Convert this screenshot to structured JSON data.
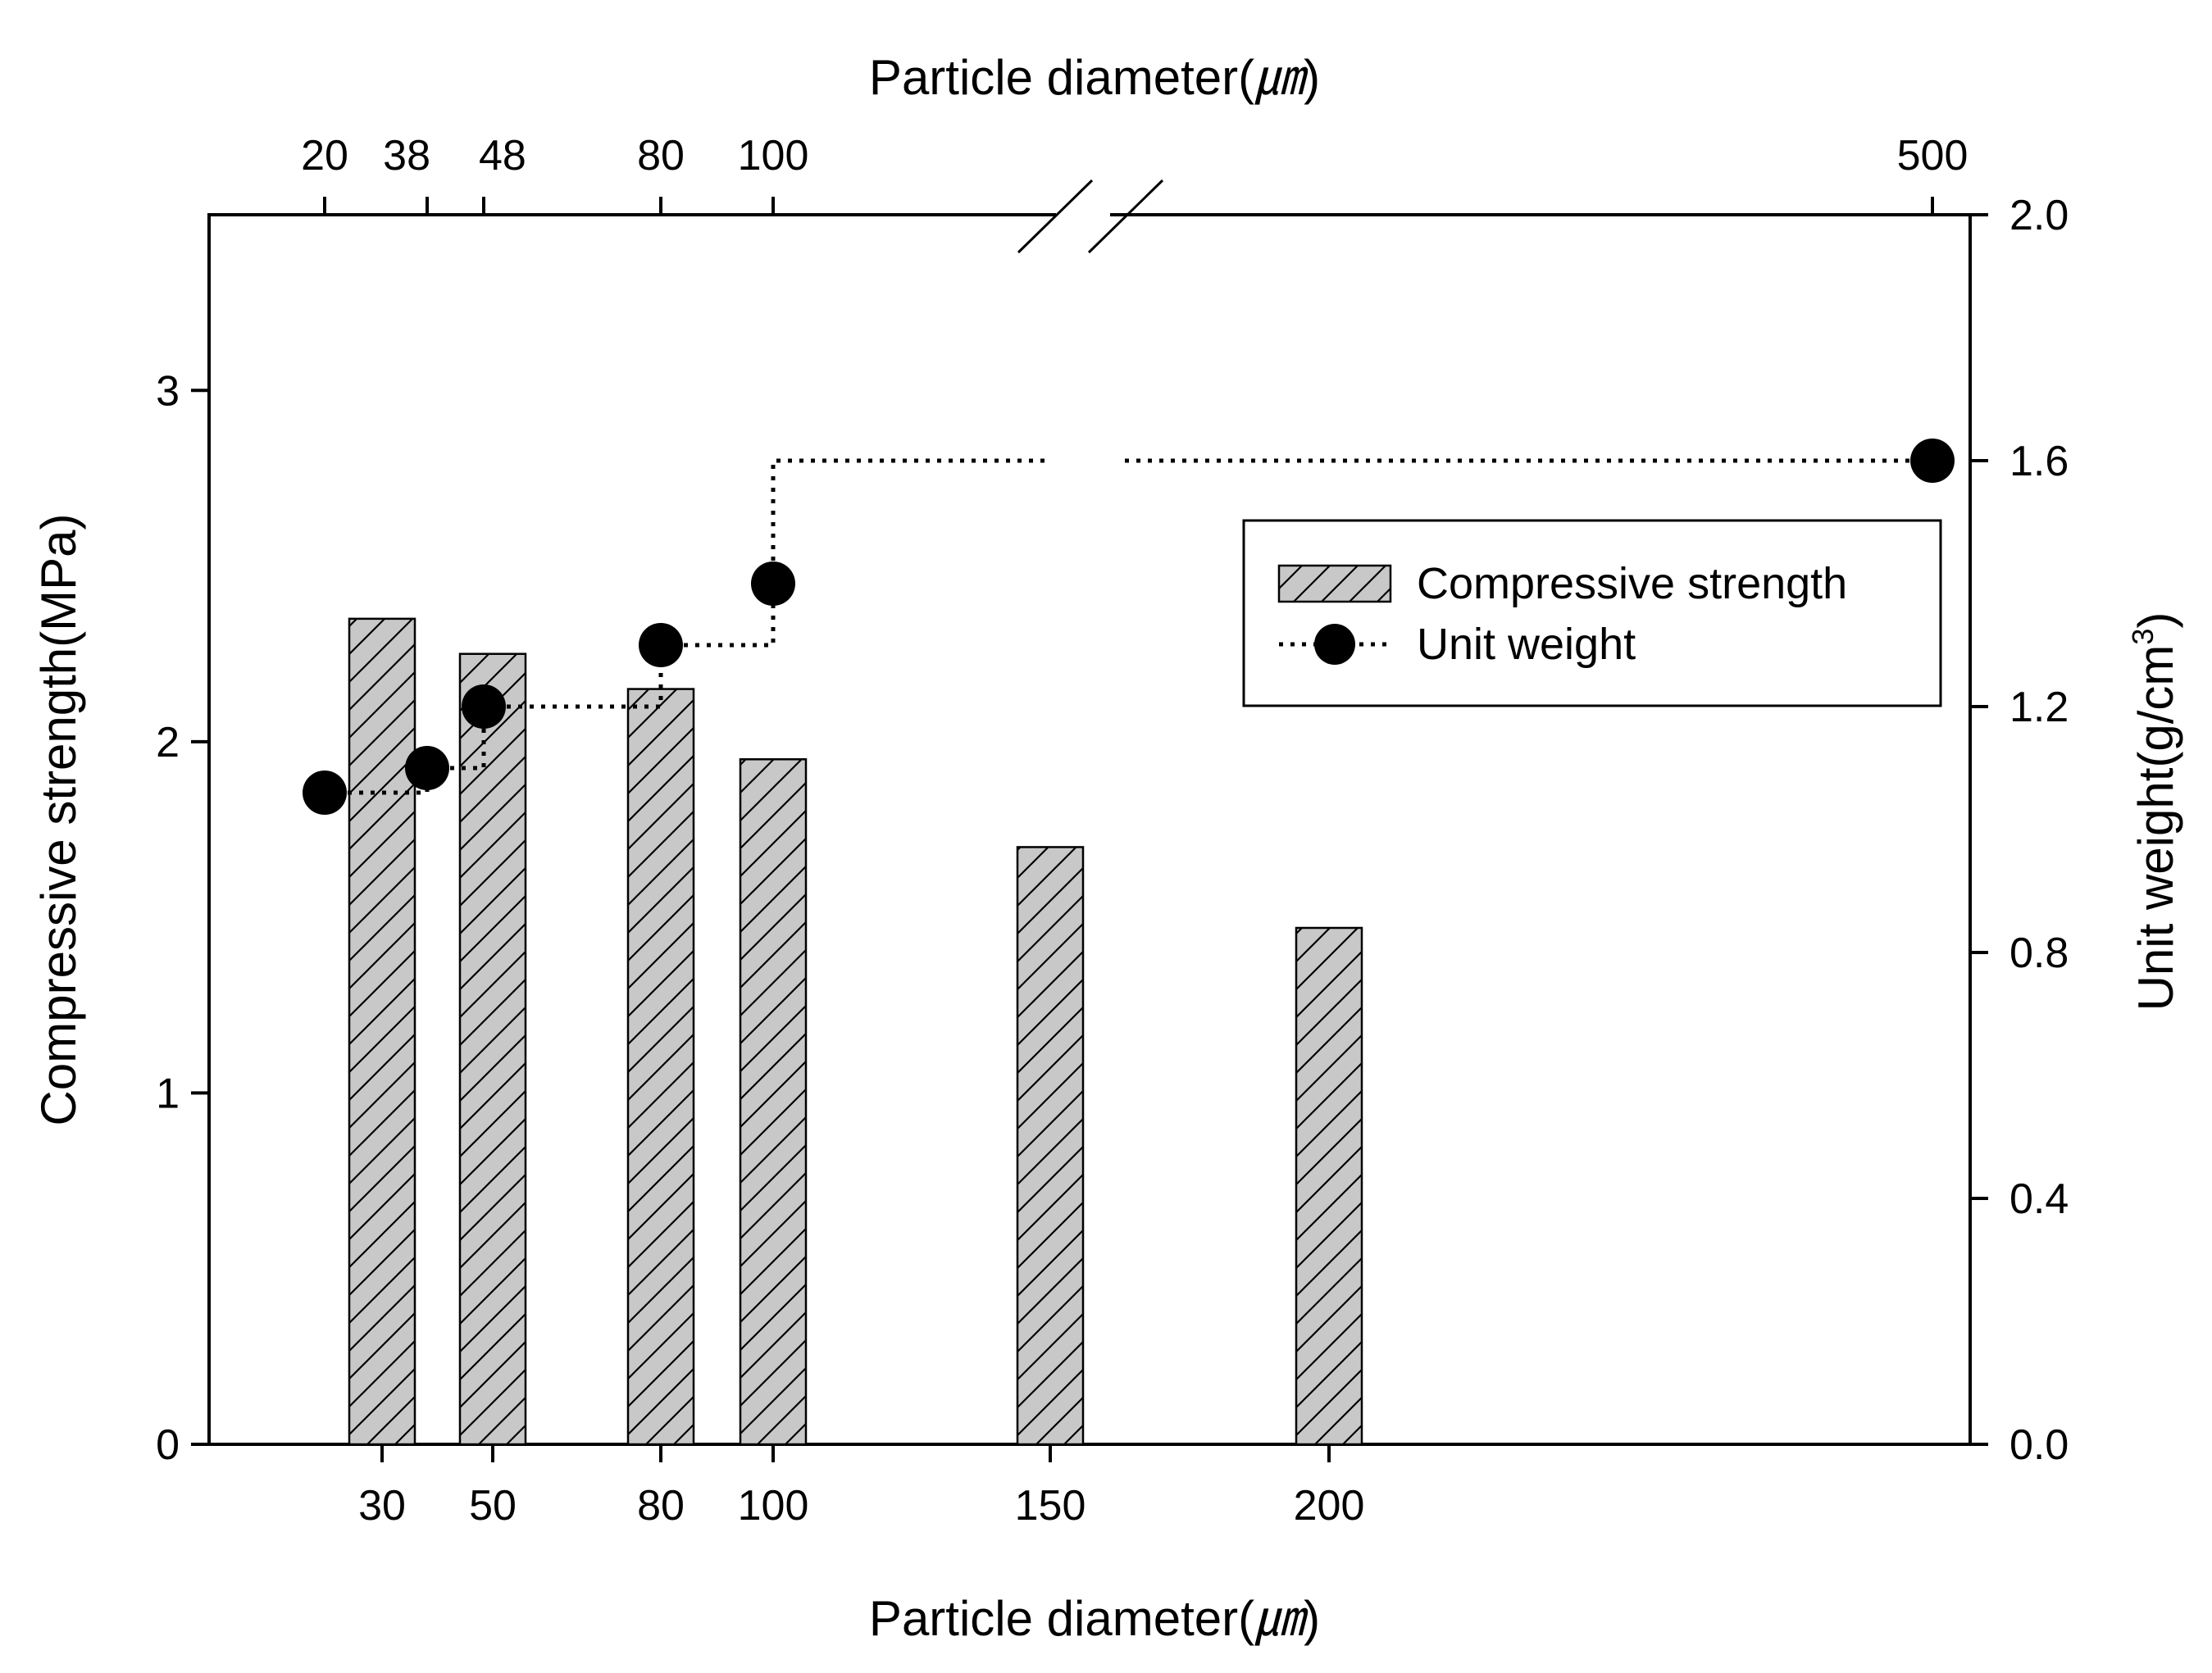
{
  "chart_data": {
    "type": "bar+line",
    "title": "",
    "bottom_axis": {
      "label_text": "Particle diameter(",
      "label_unit": "㎛",
      "label_close": ")",
      "ticks": [
        "30",
        "50",
        "80",
        "100",
        "150",
        "200"
      ]
    },
    "top_axis": {
      "label_text": "Particle diameter(",
      "label_unit": "㎛",
      "label_close": ")",
      "ticks": [
        "20",
        "38",
        "48",
        "80",
        "100",
        "500"
      ],
      "axis_break": true
    },
    "left_axis": {
      "label": "Compressive strength(MPa)",
      "ylim": [
        0,
        3.5
      ],
      "ticks": [
        "0",
        "1",
        "2",
        "3"
      ]
    },
    "right_axis": {
      "label_text": "Unit weight(g/cm",
      "label_sup": "3",
      "label_close": ")",
      "ylim": [
        0,
        2.0
      ],
      "ticks": [
        "0.0",
        "0.4",
        "0.8",
        "1.2",
        "1.6",
        "2.0"
      ]
    },
    "series": [
      {
        "name": "Compressive strength",
        "type": "bar",
        "axis": "left",
        "categories": [
          30,
          50,
          80,
          100,
          150,
          200
        ],
        "values": [
          2.35,
          2.25,
          2.15,
          1.95,
          1.7,
          1.47
        ],
        "pattern": "diagonal-hatch",
        "fill": "#c8c8c8"
      },
      {
        "name": "Unit weight",
        "type": "line-step",
        "axis": "right",
        "x": [
          20,
          38,
          48,
          80,
          100,
          500
        ],
        "values": [
          1.06,
          1.1,
          1.2,
          1.3,
          1.4,
          1.6
        ],
        "marker": "circle",
        "line_style": "dotted",
        "color": "#000000"
      }
    ],
    "legend": {
      "placement": "right-middle",
      "entries": [
        "Compressive strength",
        "Unit weight"
      ]
    }
  }
}
